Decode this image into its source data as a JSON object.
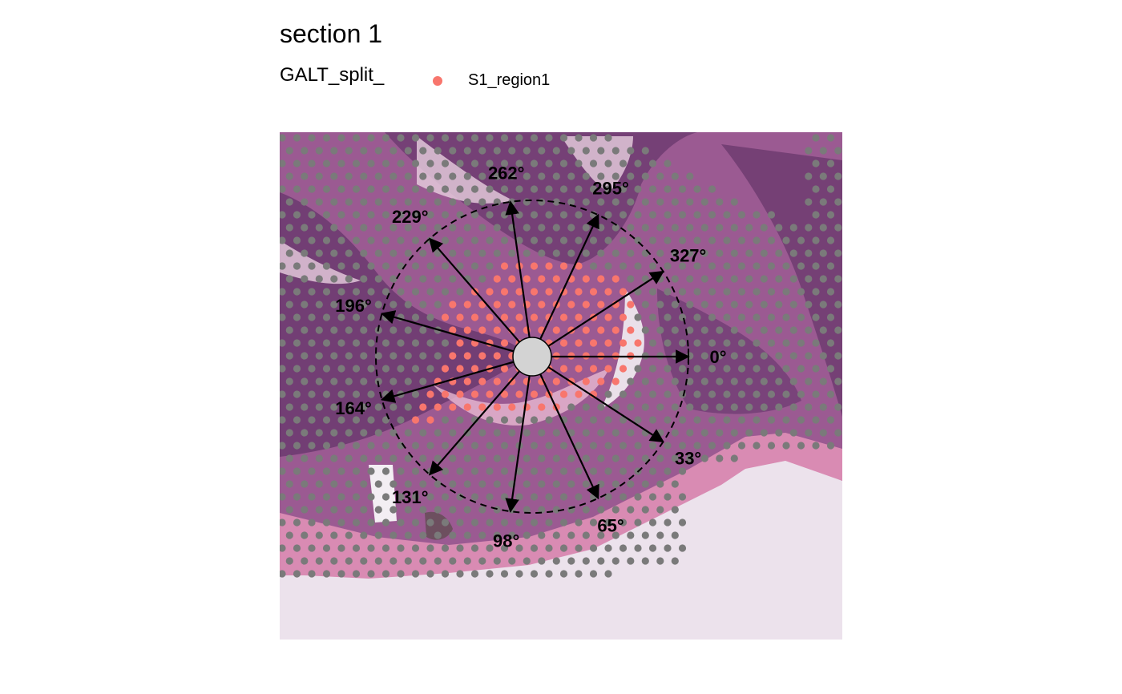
{
  "title": "section 1",
  "legend": {
    "title": "GALT_split_",
    "entries": [
      {
        "label": "S1_region1",
        "color": "#f8766d"
      }
    ]
  },
  "colors": {
    "highlight_spot": "#f8766d",
    "background_spot": "#7a7a7a",
    "center_disk": "#d3d3d3",
    "tissue_dark": "#6b3a6e",
    "tissue_pink": "#d98bb3",
    "slide_bg": "#ece2ec"
  },
  "angles": [
    "0°",
    "33°",
    "65°",
    "98°",
    "131°",
    "164°",
    "196°",
    "229°",
    "262°",
    "295°",
    "327°"
  ]
}
